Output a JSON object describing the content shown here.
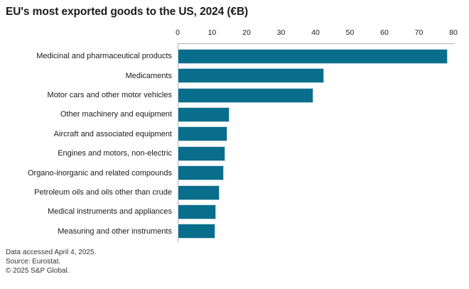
{
  "title": "EU's most exported goods to the US, 2024 (€B)",
  "footer": {
    "line1": "Data accessed April 4, 2025.",
    "line2": "Source: Eurostat.",
    "line3": "© 2025 S&P Global."
  },
  "colors": {
    "bar": "#086E8C",
    "bar_halo": "#C4D7DD",
    "axis": "#B3B3B3",
    "text": "#1A1A1A",
    "footer_text": "#333333"
  },
  "chart_data": {
    "type": "bar",
    "orientation": "horizontal",
    "title": "EU's most exported goods to the US, 2024 (€B)",
    "xlabel": "",
    "ylabel": "",
    "xlim": [
      0,
      80
    ],
    "xticks": [
      0,
      10,
      20,
      30,
      40,
      50,
      60,
      70,
      80
    ],
    "grid": false,
    "legend": false,
    "axis_position": "top",
    "categories": [
      "Medicinal and pharmaceutical products",
      "Medicaments",
      "Motor cars and other motor vehicles",
      "Other machinery and equipment",
      "Aircraft and associated equipment",
      "Engines and motors, non-electric",
      "Organo-inorganic and related compounds",
      "Petroleum oils and oils other than crude",
      "Medical instruments and appliances",
      "Measuring and other instruments"
    ],
    "values": [
      78,
      42,
      39,
      14.6,
      14,
      13.3,
      12.9,
      11.7,
      10.7,
      10.5
    ]
  }
}
